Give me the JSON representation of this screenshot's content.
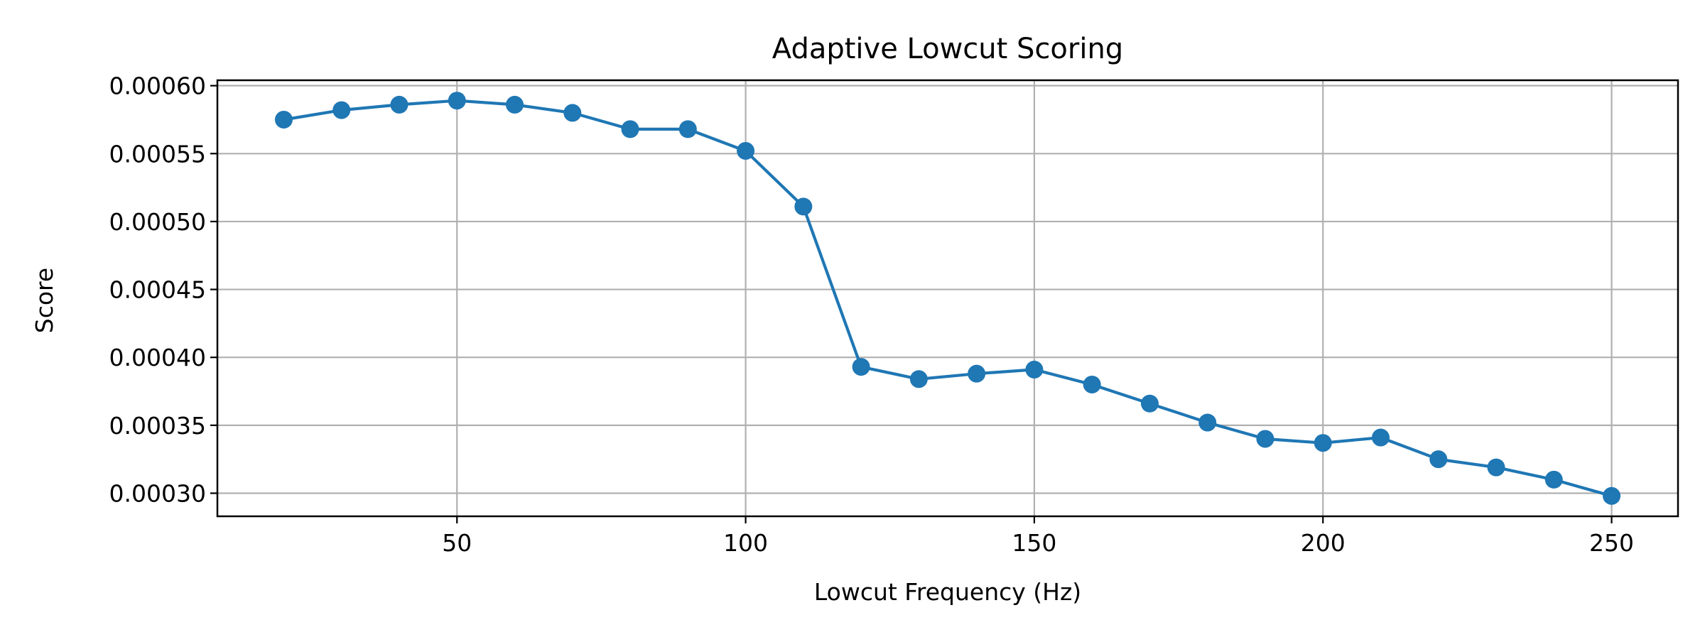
{
  "chart_data": {
    "type": "line",
    "title": "Adaptive Lowcut Scoring",
    "xlabel": "Lowcut Frequency (Hz)",
    "ylabel": "Score",
    "xlim": [
      8.5,
      261.5
    ],
    "ylim": [
      0.000283,
      0.000604
    ],
    "x_ticks": [
      50,
      100,
      150,
      200,
      250
    ],
    "x_tick_labels": [
      "50",
      "100",
      "150",
      "200",
      "250"
    ],
    "y_ticks": [
      0.0003,
      0.00035,
      0.0004,
      0.00045,
      0.0005,
      0.00055,
      0.0006
    ],
    "y_tick_labels": [
      "0.00030",
      "0.00035",
      "0.00040",
      "0.00045",
      "0.00050",
      "0.00055",
      "0.00060"
    ],
    "grid": true,
    "marker": "circle",
    "colors": {
      "series": "#1f77b4",
      "grid": "#b0b0b0",
      "axes": "#000000"
    },
    "series": [
      {
        "x": [
          20,
          30,
          40,
          50,
          60,
          70,
          80,
          90,
          100,
          110,
          120,
          130,
          140,
          150,
          160,
          170,
          180,
          190,
          200,
          210,
          220,
          230,
          240,
          250
        ],
        "y": [
          0.000575,
          0.000582,
          0.000586,
          0.000589,
          0.000586,
          0.00058,
          0.000568,
          0.000568,
          0.000552,
          0.000511,
          0.000393,
          0.000384,
          0.000388,
          0.000391,
          0.00038,
          0.000366,
          0.000352,
          0.00034,
          0.000337,
          0.000341,
          0.000325,
          0.000319,
          0.00031,
          0.000298
        ]
      }
    ]
  }
}
